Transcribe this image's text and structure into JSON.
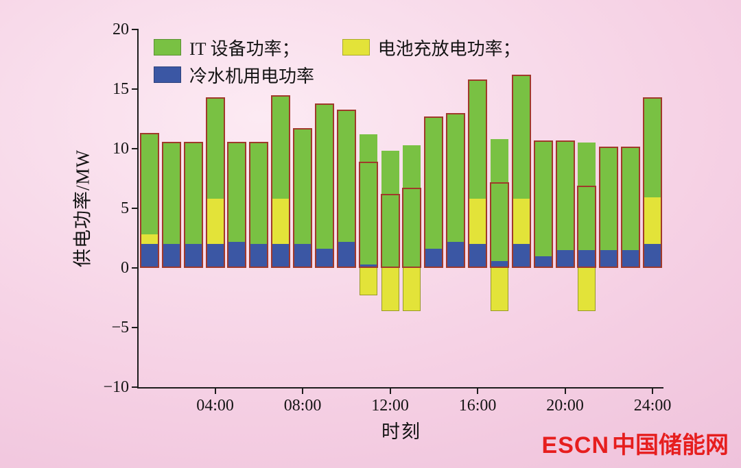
{
  "figure": {
    "y_axis_label": "供电功率/MW",
    "x_axis_label": "时刻",
    "watermark_escn": "ESCN",
    "watermark_site": "中国储能网"
  },
  "legend": [
    {
      "label": "IT 设备功率；",
      "color": "#79c143"
    },
    {
      "label": "电池充放电功率；",
      "color": "#e3e339"
    },
    {
      "label": "冷水机用电功率",
      "color": "#3b57a4"
    }
  ],
  "chart_data": {
    "type": "bar",
    "stacked": true,
    "title": "",
    "xlabel": "时刻",
    "ylabel": "供电功率/MW",
    "ylim": [
      -10,
      20
    ],
    "grid": false,
    "legend_position": "top-left-inside",
    "x": [
      1,
      2,
      3,
      4,
      5,
      6,
      7,
      8,
      9,
      10,
      11,
      12,
      13,
      14,
      15,
      16,
      17,
      18,
      19,
      20,
      21,
      22,
      23,
      24
    ],
    "x_ticks": [
      {
        "hour": 4,
        "label": "04:00"
      },
      {
        "hour": 8,
        "label": "08:00"
      },
      {
        "hour": 12,
        "label": "12:00"
      },
      {
        "hour": 16,
        "label": "16:00"
      },
      {
        "hour": 20,
        "label": "20:00"
      },
      {
        "hour": 24,
        "label": "24:00"
      }
    ],
    "y_ticks": [
      {
        "value": 20,
        "label": "20"
      },
      {
        "value": 15,
        "label": "15"
      },
      {
        "value": 10,
        "label": "10"
      },
      {
        "value": 5,
        "label": "5"
      },
      {
        "value": 0,
        "label": "0"
      },
      {
        "value": -5,
        "label": "−5"
      },
      {
        "value": -10,
        "label": "−10"
      }
    ],
    "series": [
      {
        "name": "冷水机用电功率",
        "color": "#3b57a4",
        "values": [
          2.0,
          2.0,
          2.0,
          2.0,
          2.2,
          2.0,
          2.0,
          2.0,
          1.6,
          2.2,
          0.3,
          0.0,
          0.0,
          1.6,
          2.2,
          2.0,
          0.6,
          2.0,
          1.0,
          1.5,
          1.5,
          1.5,
          1.5,
          2.0
        ]
      },
      {
        "name": "电池充放电功率",
        "color": "#e3e339",
        "values": [
          0.8,
          0,
          0,
          3.8,
          0,
          0,
          3.8,
          0,
          0,
          0,
          -2.3,
          -3.6,
          -3.6,
          0,
          0,
          3.8,
          -3.6,
          3.8,
          0,
          0,
          -3.6,
          0,
          0,
          3.9
        ]
      },
      {
        "name": "IT 设备功率",
        "color": "#79c143",
        "values": [
          8.5,
          8.6,
          8.6,
          8.5,
          8.4,
          8.6,
          8.7,
          9.7,
          12.2,
          11.1,
          10.9,
          9.8,
          10.3,
          11.1,
          10.8,
          10.0,
          10.2,
          10.4,
          9.7,
          9.2,
          9.0,
          8.7,
          8.7,
          8.4
        ]
      }
    ],
    "outline": {
      "color": "#a0392b",
      "values": [
        11.3,
        10.6,
        10.6,
        14.3,
        10.6,
        10.6,
        14.5,
        11.7,
        13.8,
        13.3,
        8.9,
        6.2,
        6.7,
        12.7,
        13.0,
        15.8,
        7.2,
        16.2,
        10.7,
        10.7,
        6.9,
        10.2,
        10.2,
        14.3
      ]
    }
  }
}
